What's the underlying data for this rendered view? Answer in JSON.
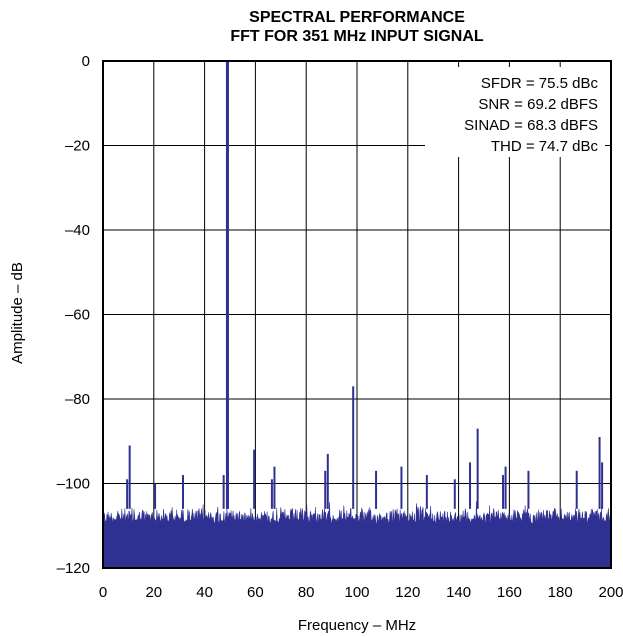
{
  "chart_data": {
    "type": "line",
    "title": "SPECTRAL PERFORMANCE",
    "subtitle": "FFT FOR 351 MHz INPUT SIGNAL",
    "xlabel": "Frequency – MHz",
    "ylabel": "Amplitude – dB",
    "xlim": [
      0,
      200
    ],
    "ylim": [
      -120,
      0
    ],
    "xticks": [
      0,
      20,
      40,
      60,
      80,
      100,
      120,
      140,
      160,
      180,
      200
    ],
    "yticks": [
      0,
      -20,
      -40,
      -60,
      -80,
      -100,
      -120
    ],
    "xtick_labels": [
      "0",
      "20",
      "40",
      "60",
      "80",
      "100",
      "120",
      "140",
      "160",
      "180",
      "200"
    ],
    "ytick_labels": [
      "0",
      "–20",
      "–40",
      "–60",
      "–80",
      "–100",
      "–120"
    ],
    "grid": true,
    "series_color": "#2e3192",
    "noise_floor": {
      "min": -120,
      "max": -104
    },
    "spurs": [
      {
        "x": 49.0,
        "y": 0
      },
      {
        "x": 10.5,
        "y": -91
      },
      {
        "x": 9.5,
        "y": -99
      },
      {
        "x": 20.5,
        "y": -100
      },
      {
        "x": 31.5,
        "y": -98
      },
      {
        "x": 47.5,
        "y": -98
      },
      {
        "x": 59.5,
        "y": -92
      },
      {
        "x": 66.5,
        "y": -99
      },
      {
        "x": 67.5,
        "y": -96
      },
      {
        "x": 87.5,
        "y": -97
      },
      {
        "x": 88.5,
        "y": -93
      },
      {
        "x": 98.5,
        "y": -77
      },
      {
        "x": 107.5,
        "y": -97
      },
      {
        "x": 117.5,
        "y": -96
      },
      {
        "x": 127.5,
        "y": -98
      },
      {
        "x": 138.5,
        "y": -99
      },
      {
        "x": 144.5,
        "y": -95
      },
      {
        "x": 147.5,
        "y": -87
      },
      {
        "x": 157.5,
        "y": -98
      },
      {
        "x": 158.5,
        "y": -96
      },
      {
        "x": 167.5,
        "y": -97
      },
      {
        "x": 186.5,
        "y": -97
      },
      {
        "x": 195.5,
        "y": -89
      },
      {
        "x": 196.5,
        "y": -95
      }
    ]
  },
  "annotations": [
    "SFDR = 75.5 dBc",
    "SNR = 69.2 dBFS",
    "SINAD = 68.3 dBFS",
    "THD = 74.7 dBc"
  ]
}
